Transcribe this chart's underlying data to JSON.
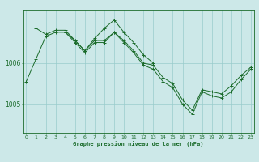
{
  "title": "Graphe pression niveau de la mer (hPa)",
  "bg_color": "#cce8e8",
  "grid_color": "#99cccc",
  "line_color": "#1a6b2a",
  "xticks": [
    0,
    1,
    2,
    3,
    4,
    5,
    6,
    7,
    8,
    9,
    10,
    11,
    12,
    13,
    14,
    15,
    16,
    17,
    18,
    19,
    20,
    21,
    22,
    23
  ],
  "yticks": [
    1005,
    1006
  ],
  "ylim": [
    1004.3,
    1007.3
  ],
  "xlim": [
    -0.3,
    23.3
  ],
  "line1": [
    1005.55,
    1006.1,
    1006.65,
    1006.75,
    1006.75,
    1006.55,
    1006.3,
    1006.55,
    1006.55,
    1006.75,
    1006.55,
    1006.3,
    1006.0,
    1005.95,
    1005.65,
    1005.5,
    1005.1,
    1004.85,
    1005.35,
    1005.3,
    1005.25,
    1005.45,
    1005.7,
    1005.9
  ],
  "line2": [
    null,
    1006.85,
    1006.7,
    1006.8,
    1006.8,
    1006.55,
    1006.3,
    1006.6,
    1006.85,
    1007.05,
    1006.75,
    1006.5,
    1006.2,
    1006.0,
    null,
    null,
    null,
    null,
    null,
    null,
    null,
    null,
    null,
    null
  ],
  "line3": [
    null,
    null,
    null,
    null,
    1006.75,
    1006.5,
    1006.25,
    1006.5,
    1006.5,
    1006.75,
    1006.5,
    1006.25,
    1005.95,
    1005.85,
    1005.55,
    1005.4,
    1005.0,
    1004.75,
    1005.3,
    1005.2,
    1005.15,
    1005.3,
    1005.6,
    1005.85
  ]
}
